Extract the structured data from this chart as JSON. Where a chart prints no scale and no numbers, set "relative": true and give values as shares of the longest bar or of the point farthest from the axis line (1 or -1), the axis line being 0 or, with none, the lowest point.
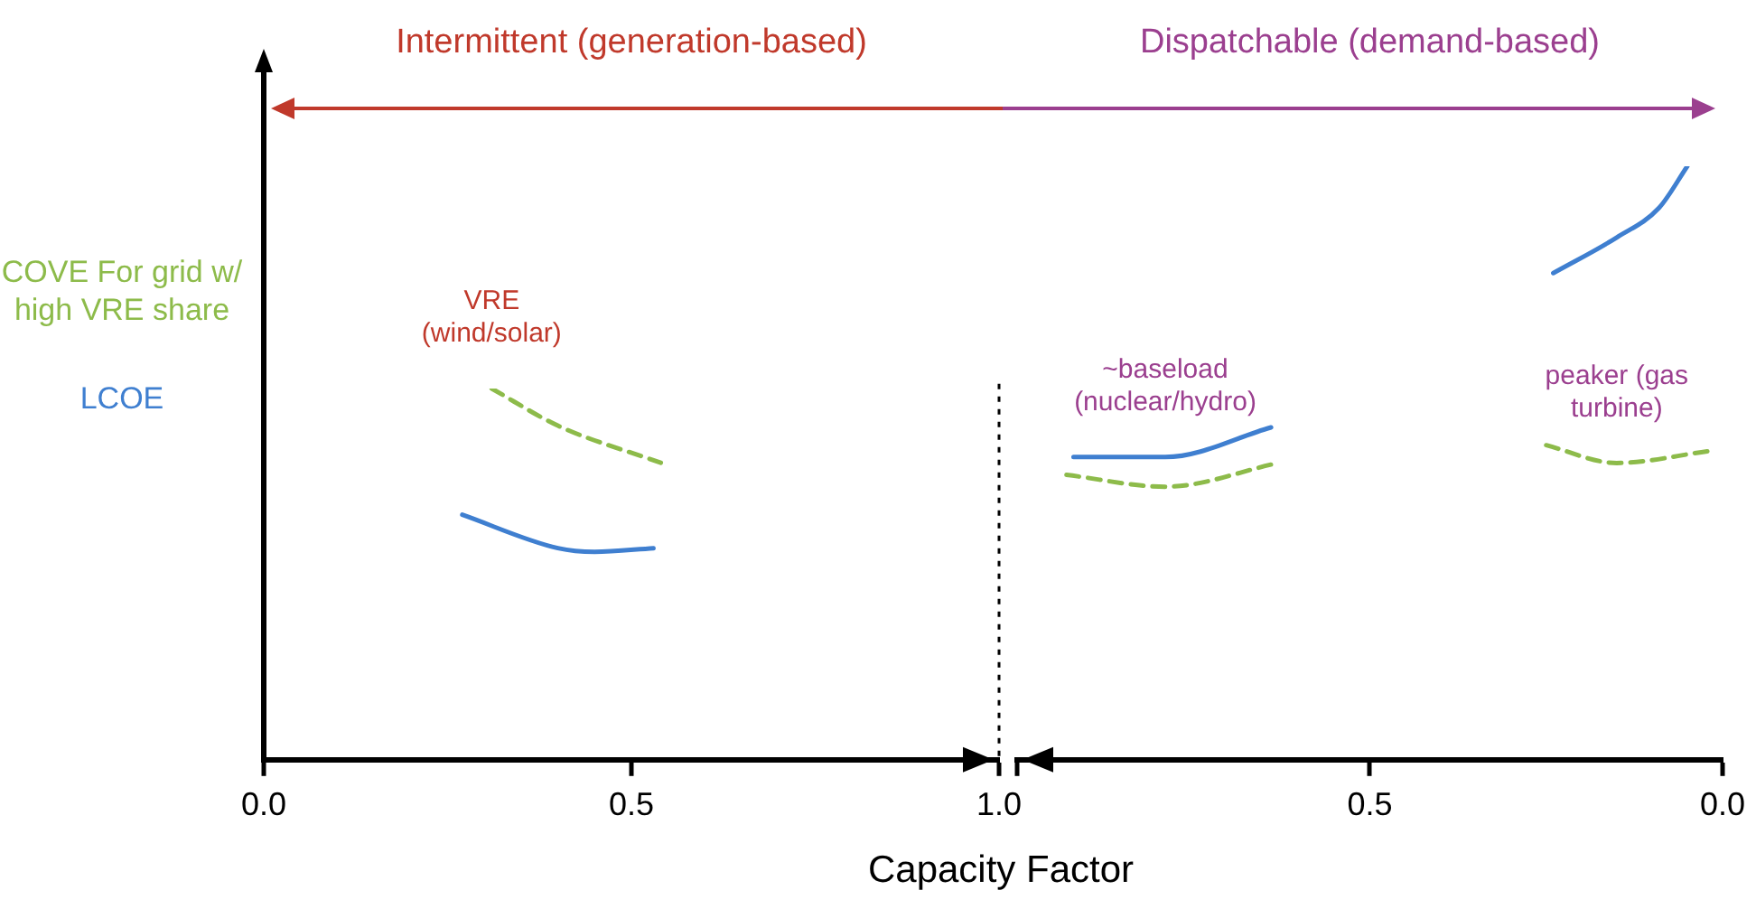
{
  "chart_data": [
    {
      "type": "line",
      "xlabel": "Capacity Factor",
      "relative": true,
      "marker": "none",
      "legend": "left",
      "xlim": [
        0,
        1
      ],
      "xticks": [
        {
          "value": 0,
          "label": "0.0"
        },
        {
          "value": 0.5,
          "label": "0.5"
        },
        {
          "value": 1,
          "label": "1.0"
        }
      ],
      "series": [
        {
          "name": "COVE For grid w/ high VRE share",
          "color": "#8dbb4a",
          "line_style": "dashed",
          "x": [
            0.31,
            0.4,
            0.54
          ],
          "values": [
            1,
            0.9,
            0.8
          ]
        },
        {
          "name": "LCOE",
          "color": "#3f7fd0",
          "line_style": "solid",
          "x": [
            0.27,
            0.4,
            0.45,
            0.53
          ],
          "values": [
            0.66,
            0.57,
            0.56,
            0.57
          ]
        }
      ],
      "ref_lines": [
        {
          "axis": "x",
          "value": 1,
          "color": "#000000",
          "line_style": "dotted"
        }
      ],
      "annotations": [
        "Intermittent (generation-based)",
        {
          "text": "VRE (wind/solar)",
          "x": 0.31,
          "y": 1
        }
      ]
    },
    {
      "type": "line",
      "relative": true,
      "marker": "none",
      "xlim": [
        1,
        0
      ],
      "xticks": [
        {
          "value": 1,
          "label": null
        },
        {
          "value": 0.5,
          "label": "0.5"
        },
        {
          "value": 0,
          "label": "0.0"
        }
      ],
      "series": [
        {
          "color": "#8dbb4a",
          "line_style": "dashed",
          "x": [
            0.93,
            0.79,
            0.63,
            0.4,
            0.25,
            0.15,
            0.02
          ],
          "values": [
            0.48,
            0.46,
            0.5,
            null,
            0.53,
            0.5,
            0.52
          ]
        },
        {
          "color": "#3f7fd0",
          "line_style": "solid",
          "x": [
            0.92,
            0.79,
            0.64,
            0.4,
            0.24,
            0.15,
            0.09,
            0.05
          ],
          "values": [
            0.51,
            0.51,
            0.56,
            null,
            0.82,
            0.88,
            0.93,
            1
          ]
        }
      ],
      "annotations": [
        "Dispatchable (demand-based)",
        {
          "text": "~baseload (nuclear/hydro)",
          "x": 0.79,
          "y": 0.51
        },
        {
          "text": "peaker (gas turbine)",
          "x": 0.15,
          "y": 0.5
        }
      ]
    }
  ]
}
